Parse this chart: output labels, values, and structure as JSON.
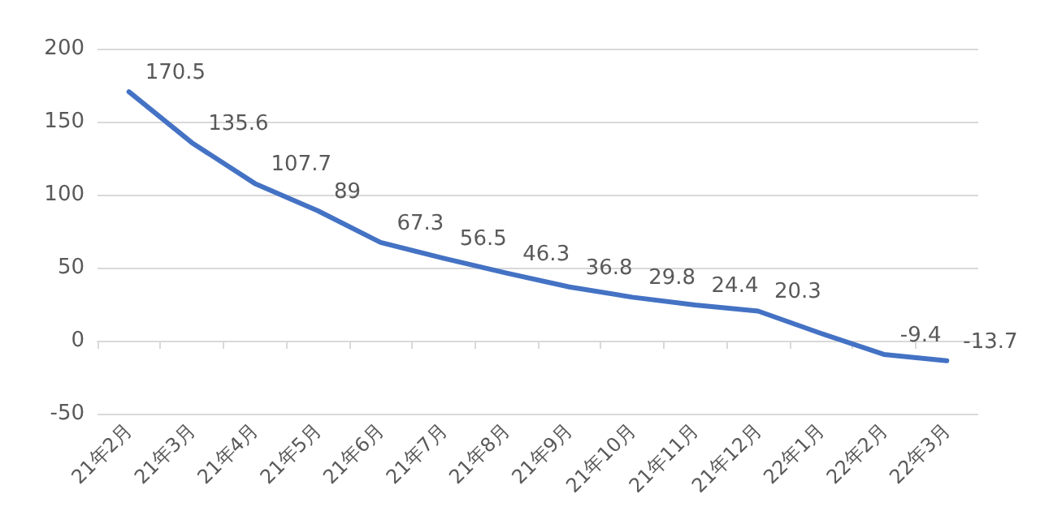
{
  "chart_data": {
    "type": "line",
    "categories": [
      "21年2月",
      "21年3月",
      "21年4月",
      "21年5月",
      "21年6月",
      "21年7月",
      "21年8月",
      "21年9月",
      "21年10月",
      "21年11月",
      "21年12月",
      "22年1月",
      "22年2月",
      "22年3月"
    ],
    "series": [
      {
        "color": "#4472c4",
        "values": [
          170.5,
          135.6,
          107.7,
          89,
          67.3,
          56.5,
          46.3,
          36.8,
          29.8,
          24.4,
          20.3,
          5,
          -9.4,
          -13.7
        ],
        "value_labels": [
          "170.5",
          "135.6",
          "107.7",
          "89",
          "67.3",
          "56.5",
          "46.3",
          "36.8",
          "29.8",
          "24.4",
          "20.3",
          null,
          "-9.4",
          "-13.7"
        ]
      }
    ],
    "ylim": [
      -50,
      200
    ],
    "yticks": [
      -50,
      0,
      50,
      100,
      150,
      200
    ],
    "grid": "y",
    "marker": "none",
    "line_style": "solid"
  }
}
